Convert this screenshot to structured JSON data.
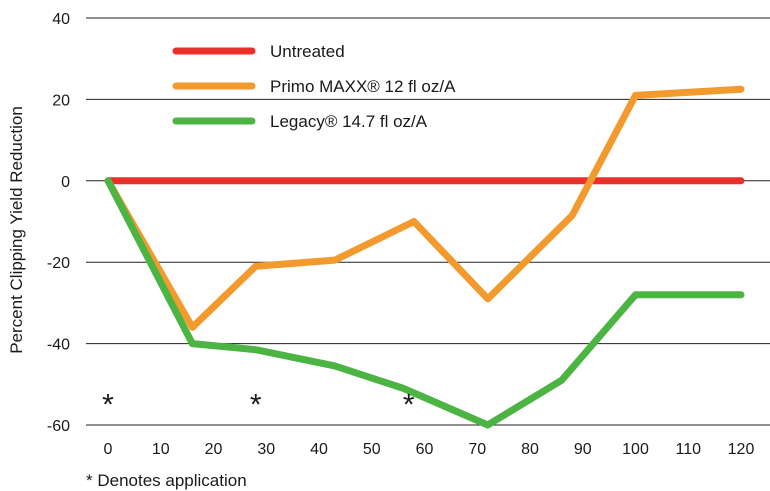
{
  "chart_data": {
    "type": "line",
    "ylabel": "Percent Clipping Yield Reduction",
    "xlabel": "",
    "xlim": [
      -10,
      130
    ],
    "ylim": [
      -60,
      40
    ],
    "x_ticks": [
      0,
      10,
      20,
      30,
      40,
      50,
      60,
      70,
      80,
      90,
      100,
      110,
      120
    ],
    "y_ticks": [
      40,
      20,
      0,
      -20,
      -40,
      -60
    ],
    "grid": "horizontal",
    "legend_position": "top-left",
    "series": [
      {
        "name": "Untreated",
        "color": "#e8312b",
        "x": [
          0,
          120
        ],
        "y": [
          0,
          0
        ]
      },
      {
        "name": "Primo MAXX® 12 fl oz/A",
        "color": "#f39a2e",
        "x": [
          0,
          16,
          28,
          43,
          58,
          72,
          88,
          100,
          120
        ],
        "y": [
          0,
          -36,
          -21,
          -19.5,
          -10,
          -29,
          -8.5,
          21,
          22.5
        ]
      },
      {
        "name": "Legacy® 14.7 fl oz/A",
        "color": "#4bb443",
        "x": [
          0,
          16,
          28,
          43,
          56,
          72,
          86,
          100,
          120
        ],
        "y": [
          0,
          -40,
          -41.5,
          -45.5,
          -51,
          -60,
          -49,
          -28,
          -28
        ]
      }
    ],
    "application_markers": {
      "symbol": "*",
      "x": [
        0,
        28,
        57
      ],
      "y": -54
    },
    "footnote": "* Denotes application"
  }
}
